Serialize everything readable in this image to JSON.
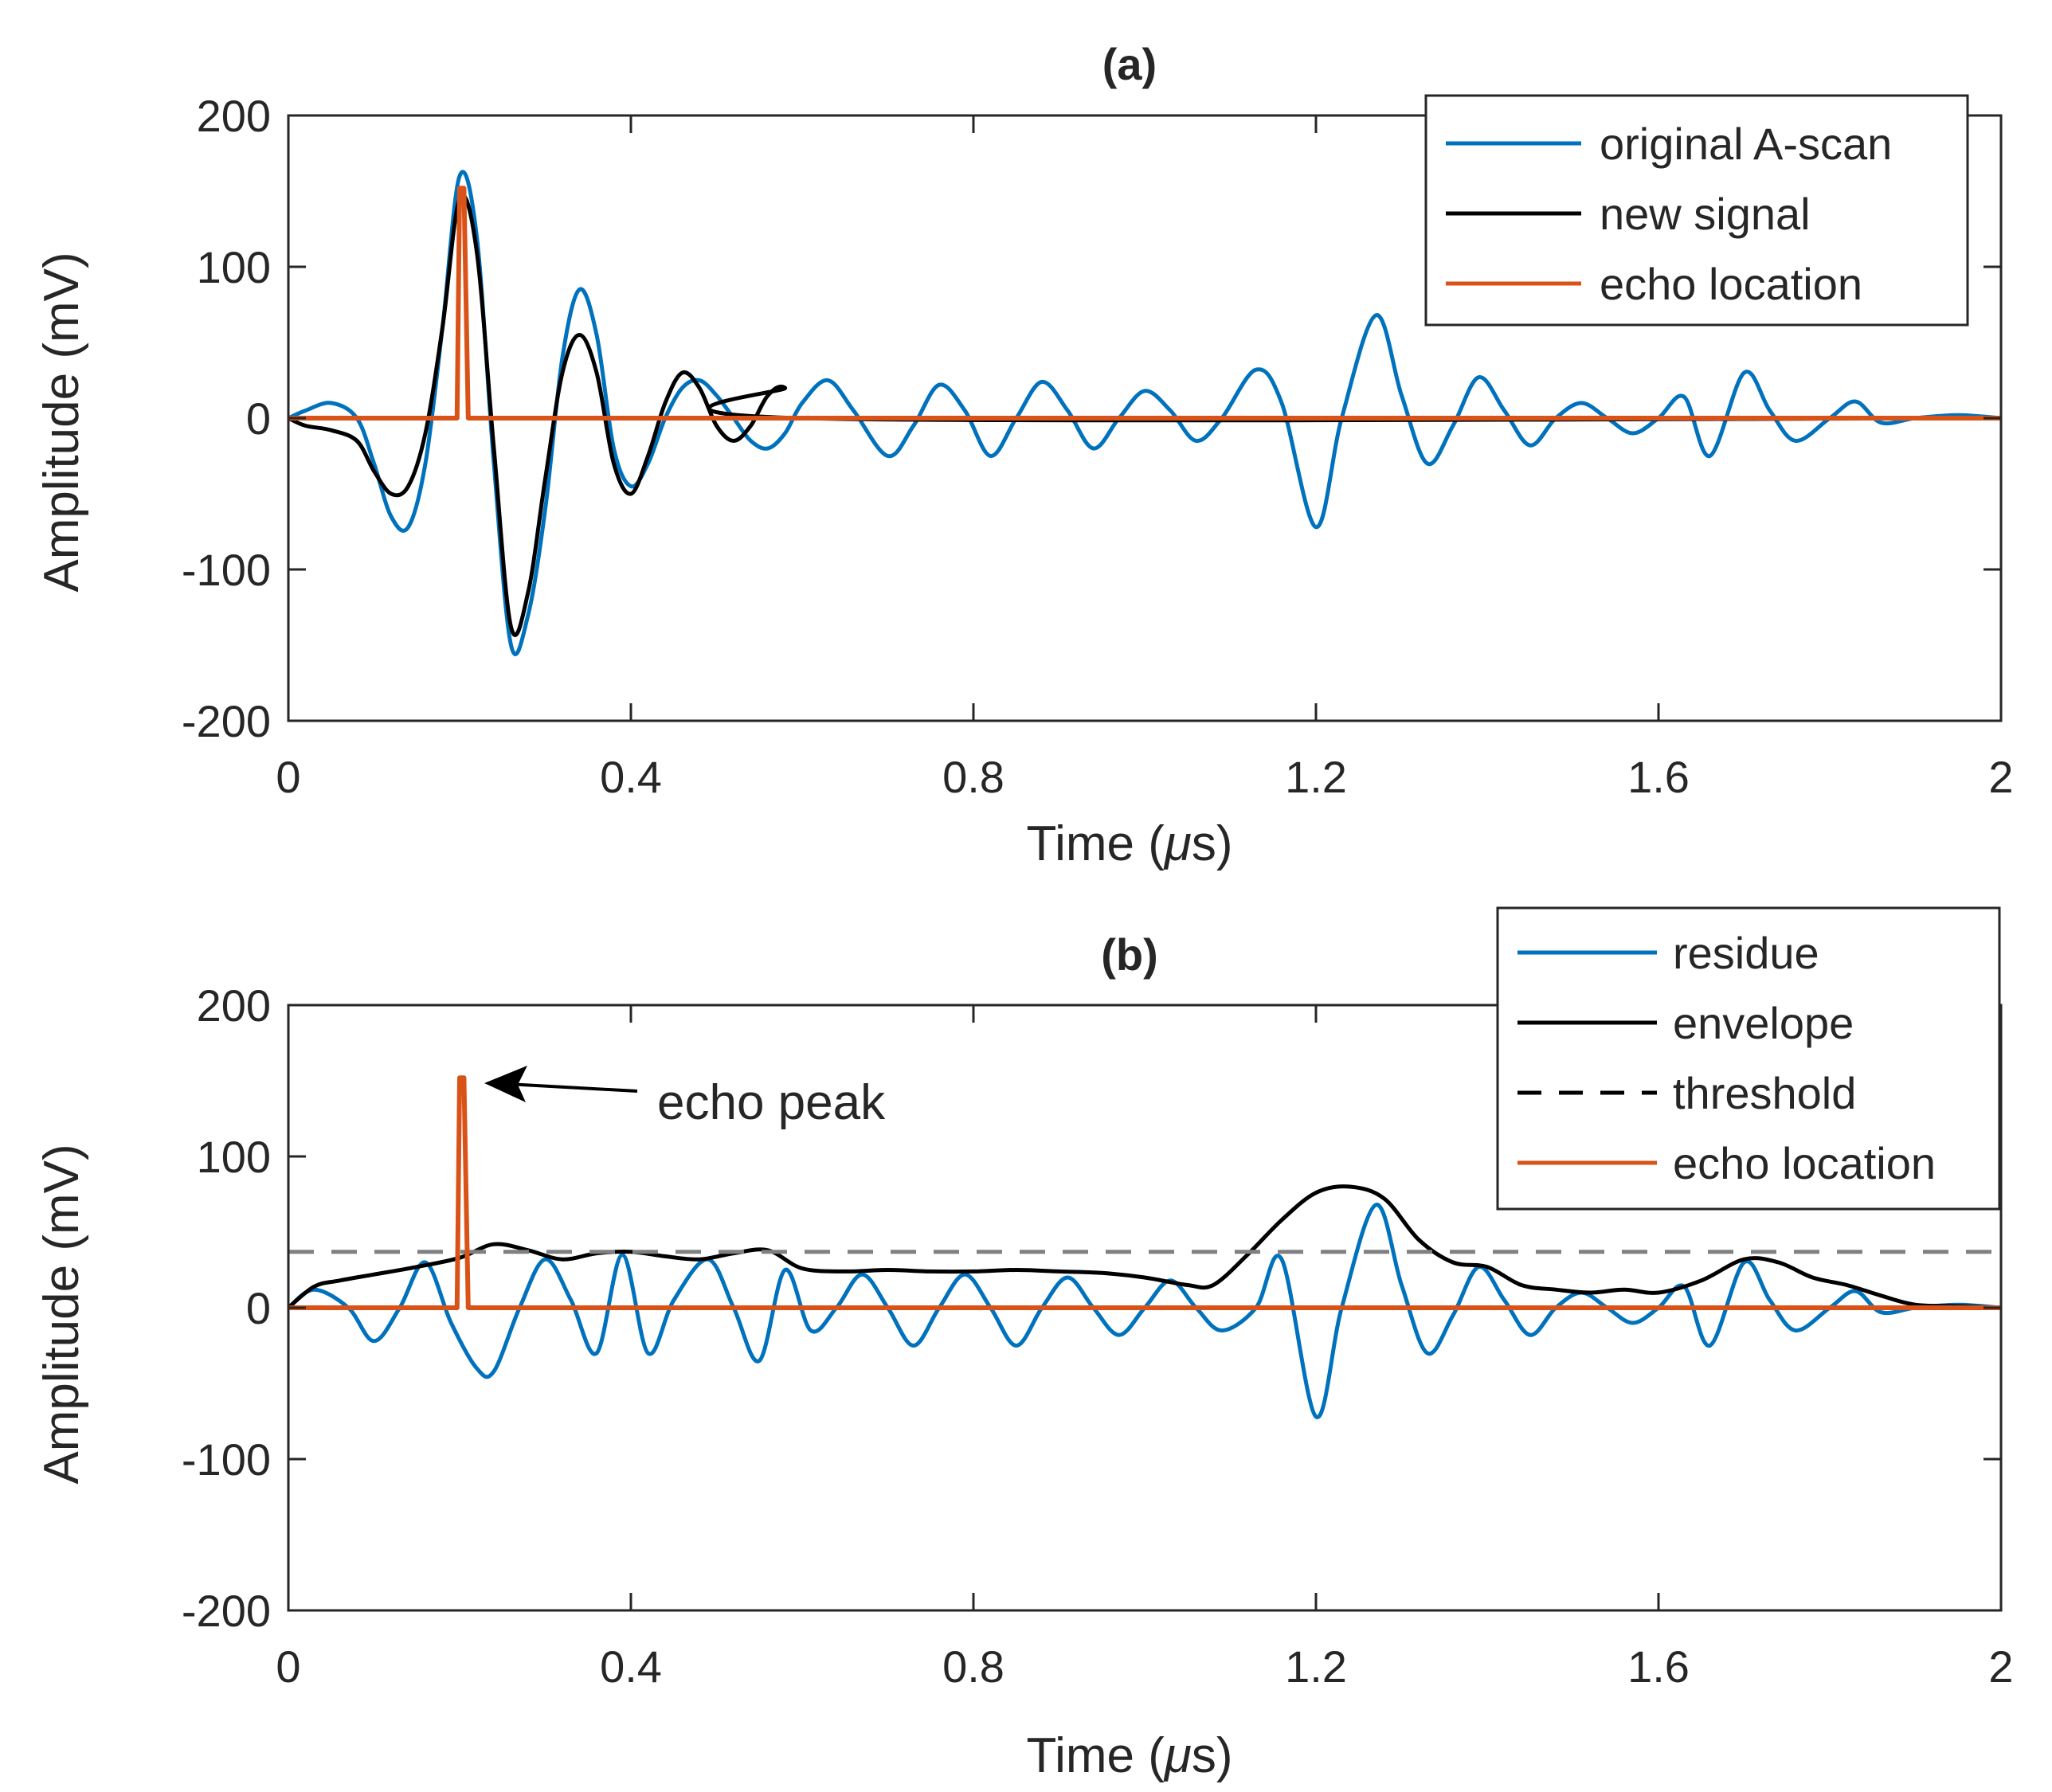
{
  "colors": {
    "blue": "#0072BD",
    "black": "#000000",
    "orange": "#D95319",
    "threshold": "#808080",
    "axis": "#262626"
  },
  "chart_data": [
    {
      "type": "line",
      "title": "(a)",
      "xlabel": "Time (",
      "xlabel_mu": "μ",
      "xlabel_end": "s)",
      "ylabel": "Amplitude (mV)",
      "xlim": [
        0,
        2
      ],
      "ylim": [
        -200,
        200
      ],
      "xticks": [
        0,
        0.4,
        0.8,
        1.2,
        1.6,
        2
      ],
      "xtick_labels": [
        "0",
        "0.4",
        "0.8",
        "1.2",
        "1.6",
        "2"
      ],
      "yticks": [
        -200,
        -100,
        0,
        100,
        200
      ],
      "ytick_labels": [
        "-200",
        "-100",
        "0",
        "100",
        "200"
      ],
      "legend_position": "top-right",
      "series": [
        {
          "name": "original A-scan",
          "color": "blue",
          "x": [
            0.0,
            0.02,
            0.05,
            0.08,
            0.1,
            0.12,
            0.14,
            0.16,
            0.18,
            0.2,
            0.22,
            0.24,
            0.26,
            0.28,
            0.3,
            0.32,
            0.34,
            0.36,
            0.38,
            0.4,
            0.42,
            0.44,
            0.46,
            0.48,
            0.5,
            0.52,
            0.54,
            0.56,
            0.58,
            0.6,
            0.63,
            0.66,
            0.7,
            0.73,
            0.76,
            0.79,
            0.82,
            0.85,
            0.88,
            0.91,
            0.94,
            0.97,
            1.0,
            1.03,
            1.06,
            1.09,
            1.13,
            1.16,
            1.2,
            1.23,
            1.27,
            1.3,
            1.33,
            1.36,
            1.39,
            1.42,
            1.45,
            1.48,
            1.51,
            1.54,
            1.57,
            1.6,
            1.63,
            1.66,
            1.7,
            1.73,
            1.76,
            1.8,
            1.83,
            1.86,
            1.9,
            1.95,
            2.0
          ],
          "y": [
            0,
            5,
            10,
            0,
            -30,
            -65,
            -72,
            -30,
            60,
            160,
            120,
            -30,
            -150,
            -130,
            -60,
            40,
            85,
            55,
            -20,
            -45,
            -30,
            0,
            20,
            25,
            15,
            0,
            -15,
            -20,
            -10,
            10,
            25,
            5,
            -25,
            -5,
            22,
            5,
            -25,
            0,
            24,
            5,
            -20,
            0,
            18,
            5,
            -15,
            0,
            32,
            10,
            -72,
            0,
            68,
            15,
            -30,
            -5,
            27,
            5,
            -18,
            0,
            10,
            0,
            -10,
            0,
            14,
            -25,
            30,
            5,
            -15,
            0,
            11,
            -3,
            0,
            2,
            0
          ]
        },
        {
          "name": "new signal",
          "color": "black",
          "x": [
            0.0,
            0.02,
            0.05,
            0.08,
            0.1,
            0.12,
            0.14,
            0.16,
            0.18,
            0.2,
            0.22,
            0.24,
            0.26,
            0.28,
            0.3,
            0.32,
            0.34,
            0.36,
            0.38,
            0.4,
            0.42,
            0.44,
            0.46,
            0.48,
            0.5,
            0.52,
            0.54,
            0.56,
            0.58,
            0.6,
            2.0
          ],
          "y": [
            0,
            -5,
            -8,
            -15,
            -35,
            -50,
            -45,
            -10,
            60,
            145,
            110,
            -20,
            -138,
            -115,
            -40,
            30,
            55,
            30,
            -30,
            -50,
            -25,
            10,
            30,
            20,
            -5,
            -15,
            -5,
            15,
            20,
            0,
            0
          ]
        },
        {
          "name": "echo location",
          "color": "orange",
          "x": [
            0.0,
            0.197,
            0.2,
            0.205,
            0.21,
            2.0
          ],
          "y": [
            0,
            0,
            152,
            152,
            0,
            0
          ]
        }
      ]
    },
    {
      "type": "line",
      "title": "(b)",
      "xlabel": "Time (",
      "xlabel_mu": "μ",
      "xlabel_end": "s)",
      "ylabel": "Amplitude (mV)",
      "xlim": [
        0,
        2
      ],
      "ylim": [
        -200,
        200
      ],
      "xticks": [
        0,
        0.4,
        0.8,
        1.2,
        1.6,
        2
      ],
      "xtick_labels": [
        "0",
        "0.4",
        "0.8",
        "1.2",
        "1.6",
        "2"
      ],
      "yticks": [
        -200,
        -100,
        0,
        100,
        200
      ],
      "ytick_labels": [
        "-200",
        "-100",
        "0",
        "100",
        "200"
      ],
      "legend_position": "top-right",
      "annotation": {
        "text": "echo peak",
        "x": 0.23,
        "y": 150
      },
      "series": [
        {
          "name": "residue",
          "color": "blue",
          "x": [
            0.0,
            0.03,
            0.07,
            0.1,
            0.13,
            0.16,
            0.19,
            0.22,
            0.24,
            0.27,
            0.3,
            0.33,
            0.36,
            0.39,
            0.42,
            0.45,
            0.49,
            0.52,
            0.55,
            0.58,
            0.61,
            0.64,
            0.67,
            0.7,
            0.73,
            0.76,
            0.79,
            0.82,
            0.85,
            0.88,
            0.91,
            0.94,
            0.97,
            1.0,
            1.03,
            1.06,
            1.09,
            1.13,
            1.16,
            1.2,
            1.23,
            1.27,
            1.3,
            1.33,
            1.36,
            1.39,
            1.42,
            1.45,
            1.48,
            1.51,
            1.54,
            1.57,
            1.6,
            1.63,
            1.66,
            1.7,
            1.73,
            1.76,
            1.8,
            1.83,
            1.86,
            1.9,
            1.95,
            2.0
          ],
          "y": [
            0,
            12,
            0,
            -22,
            0,
            30,
            -10,
            -40,
            -42,
            0,
            32,
            5,
            -30,
            35,
            -30,
            5,
            32,
            0,
            -35,
            25,
            -15,
            0,
            22,
            0,
            -25,
            0,
            22,
            0,
            -25,
            0,
            20,
            0,
            -18,
            0,
            18,
            0,
            -15,
            0,
            32,
            -72,
            0,
            68,
            15,
            -30,
            -5,
            27,
            5,
            -18,
            0,
            10,
            0,
            -10,
            0,
            14,
            -25,
            30,
            5,
            -15,
            0,
            11,
            -3,
            0,
            2,
            0
          ]
        },
        {
          "name": "envelope",
          "color": "black",
          "x": [
            0.0,
            0.03,
            0.06,
            0.1,
            0.15,
            0.2,
            0.24,
            0.28,
            0.32,
            0.36,
            0.4,
            0.44,
            0.48,
            0.52,
            0.56,
            0.6,
            0.65,
            0.7,
            0.75,
            0.8,
            0.85,
            0.9,
            0.95,
            1.0,
            1.05,
            1.08,
            1.12,
            1.16,
            1.2,
            1.24,
            1.28,
            1.32,
            1.36,
            1.4,
            1.44,
            1.48,
            1.52,
            1.56,
            1.6,
            1.65,
            1.7,
            1.74,
            1.78,
            1.82,
            1.86,
            1.9,
            1.95,
            2.0
          ],
          "y": [
            0,
            14,
            18,
            22,
            27,
            33,
            42,
            38,
            32,
            36,
            37,
            34,
            32,
            36,
            38,
            26,
            24,
            25,
            24,
            24,
            25,
            24,
            23,
            20,
            15,
            15,
            35,
            58,
            76,
            80,
            72,
            45,
            30,
            27,
            15,
            12,
            10,
            12,
            10,
            18,
            32,
            30,
            20,
            15,
            8,
            2,
            1,
            0
          ]
        },
        {
          "name": "threshold",
          "color": "threshold",
          "dashed": true,
          "x": [
            0,
            2
          ],
          "y": [
            37,
            37
          ]
        },
        {
          "name": "echo location",
          "color": "orange",
          "x": [
            0.0,
            0.197,
            0.2,
            0.205,
            0.21,
            2.0
          ],
          "y": [
            0,
            0,
            152,
            152,
            0,
            0
          ]
        }
      ]
    }
  ]
}
